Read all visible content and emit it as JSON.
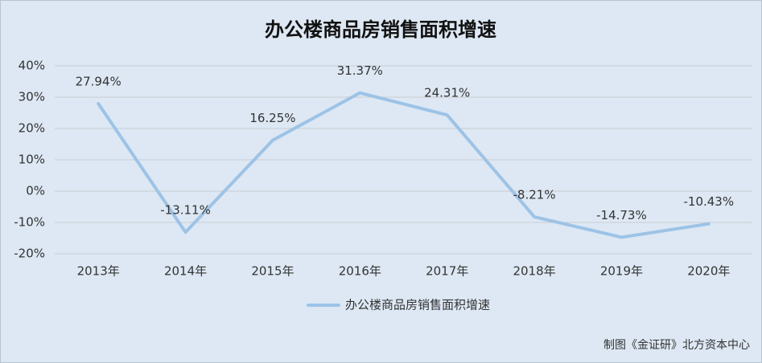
{
  "chart_data": {
    "type": "line",
    "title": "办公楼商品房销售面积增速",
    "categories": [
      "2013年",
      "2014年",
      "2015年",
      "2016年",
      "2017年",
      "2018年",
      "2019年",
      "2020年"
    ],
    "series": [
      {
        "name": "办公楼商品房销售面积增速",
        "color": "#9dc3e6",
        "values": [
          27.94,
          -13.11,
          16.25,
          31.37,
          24.31,
          -8.21,
          -14.73,
          -10.43
        ],
        "value_labels": [
          "27.94%",
          "-13.11%",
          "16.25%",
          "31.37%",
          "24.31%",
          "-8.21%",
          "-14.73%",
          "-10.43%"
        ]
      }
    ],
    "ylim": [
      -20,
      40
    ],
    "yticks": [
      {
        "value": -20,
        "label": "-20%"
      },
      {
        "value": -10,
        "label": "-10%"
      },
      {
        "value": 0,
        "label": "0%"
      },
      {
        "value": 10,
        "label": "10%"
      },
      {
        "value": 20,
        "label": "20%"
      },
      {
        "value": 30,
        "label": "30%"
      },
      {
        "value": 40,
        "label": "40%"
      }
    ],
    "grid": true,
    "legend": "bottom",
    "source": "制图《金证研》北方资本中心"
  }
}
